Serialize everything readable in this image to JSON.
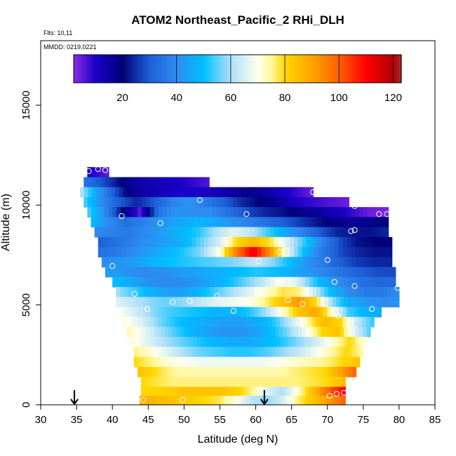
{
  "chart_data": {
    "type": "heatmap",
    "title": "ATOM2 Northeast_Pacific_2 RHi_DLH",
    "annotations": [
      "Flts: 10,11",
      "MMDD: 0219,0221"
    ],
    "xlabel": "Latitude (deg N)",
    "ylabel": "Altitude (m)",
    "xlim": [
      30,
      85
    ],
    "ylim": [
      0,
      17500
    ],
    "xticks": [
      30,
      35,
      40,
      45,
      50,
      55,
      60,
      65,
      70,
      75,
      80,
      85
    ],
    "yticks": [
      0,
      5000,
      10000,
      15000
    ],
    "colorbar": {
      "range": [
        2,
        123
      ],
      "ticks": [
        20,
        40,
        60,
        80,
        100,
        120
      ],
      "stops": [
        {
          "v": 2,
          "color": "#8a2be2"
        },
        {
          "v": 10,
          "color": "#1a00c8"
        },
        {
          "v": 20,
          "color": "#00007a"
        },
        {
          "v": 30,
          "color": "#1d5fd8"
        },
        {
          "v": 40,
          "color": "#2e8bf0"
        },
        {
          "v": 50,
          "color": "#00bfff"
        },
        {
          "v": 60,
          "color": "#b0e0f8"
        },
        {
          "v": 70,
          "color": "#fffff0"
        },
        {
          "v": 75,
          "color": "#fff8a0"
        },
        {
          "v": 80,
          "color": "#ffd700"
        },
        {
          "v": 90,
          "color": "#ffa500"
        },
        {
          "v": 100,
          "color": "#ff6000"
        },
        {
          "v": 110,
          "color": "#ff0000"
        },
        {
          "v": 120,
          "color": "#b00000"
        },
        {
          "v": 123,
          "color": "#a52a2a"
        }
      ]
    },
    "arrows_latitude": [
      34.7,
      61.2
    ],
    "rows": [
      {
        "y0": 11400,
        "y1": 11900,
        "x0": 36.5,
        "x1": 39.5,
        "v": [
          12,
          8,
          5
        ]
      },
      {
        "y0": 10900,
        "y1": 11400,
        "x0": 36,
        "x1": 53.5,
        "v": [
          35,
          30,
          25,
          18,
          14,
          12,
          12,
          10,
          8,
          6
        ]
      },
      {
        "y0": 10400,
        "y1": 10900,
        "x0": 35.5,
        "x1": 68,
        "v": [
          62,
          45,
          30,
          18,
          14,
          12,
          10,
          10,
          12,
          15,
          18,
          16,
          12,
          8,
          4
        ]
      },
      {
        "y0": 9900,
        "y1": 10400,
        "x0": 36,
        "x1": 73,
        "v": [
          55,
          40,
          30,
          24,
          30,
          38,
          42,
          36,
          30,
          24,
          20,
          16,
          10,
          8,
          6,
          4
        ]
      },
      {
        "y0": 9400,
        "y1": 9900,
        "x0": 36.5,
        "x1": 78.5,
        "v": [
          55,
          40,
          20,
          5,
          35,
          42,
          40,
          40,
          34,
          28,
          24,
          22,
          18,
          16,
          12,
          8,
          4,
          3
        ]
      },
      {
        "y0": 8900,
        "y1": 9400,
        "x0": 37,
        "x1": 78.5,
        "v": [
          50,
          40,
          34,
          38,
          42,
          45,
          48,
          46,
          42,
          38,
          34,
          30,
          26,
          22,
          18,
          16,
          18,
          20
        ]
      },
      {
        "y0": 8400,
        "y1": 8900,
        "x0": 37.5,
        "x1": 78.5,
        "v": [
          40,
          38,
          36,
          40,
          44,
          48,
          52,
          60,
          66,
          62,
          54,
          46,
          38,
          30,
          24,
          22,
          22,
          24
        ]
      },
      {
        "y0": 7900,
        "y1": 8400,
        "x0": 38,
        "x1": 79,
        "v": [
          30,
          34,
          38,
          42,
          44,
          48,
          56,
          64,
          80,
          86,
          78,
          64,
          52,
          38,
          28,
          22,
          20,
          20
        ]
      },
      {
        "y0": 7400,
        "y1": 7900,
        "x0": 38,
        "x1": 79,
        "v": [
          34,
          36,
          40,
          44,
          48,
          52,
          58,
          70,
          96,
          112,
          92,
          66,
          48,
          36,
          28,
          24,
          22,
          22
        ]
      },
      {
        "y0": 6900,
        "y1": 7400,
        "x0": 38.5,
        "x1": 79,
        "v": [
          40,
          42,
          44,
          48,
          50,
          52,
          54,
          56,
          58,
          62,
          58,
          50,
          42,
          36,
          30,
          26,
          24,
          24
        ]
      },
      {
        "y0": 6400,
        "y1": 6900,
        "x0": 39,
        "x1": 79.5,
        "v": [
          44,
          42,
          40,
          40,
          42,
          44,
          46,
          48,
          50,
          52,
          50,
          46,
          42,
          38,
          34,
          30,
          28,
          28
        ]
      },
      {
        "y0": 5900,
        "y1": 6400,
        "x0": 40,
        "x1": 79.5,
        "v": [
          50,
          46,
          42,
          40,
          40,
          42,
          46,
          50,
          56,
          62,
          70,
          66,
          54,
          44,
          38,
          34,
          32,
          32
        ]
      },
      {
        "y0": 5400,
        "y1": 5900,
        "x0": 40.5,
        "x1": 80,
        "v": [
          60,
          54,
          48,
          44,
          44,
          48,
          54,
          60,
          66,
          72,
          78,
          76,
          62,
          48,
          40,
          36,
          36,
          40
        ]
      },
      {
        "y0": 4900,
        "y1": 5400,
        "x0": 40.5,
        "x1": 80,
        "v": [
          66,
          62,
          58,
          56,
          58,
          62,
          66,
          68,
          70,
          76,
          84,
          92,
          80,
          58,
          46,
          42,
          40,
          42
        ]
      },
      {
        "y0": 4400,
        "y1": 4900,
        "x0": 41,
        "x1": 77.5,
        "v": [
          70,
          64,
          58,
          54,
          52,
          50,
          48,
          48,
          52,
          60,
          72,
          84,
          90,
          72,
          54,
          48,
          46
        ]
      },
      {
        "y0": 3900,
        "y1": 4400,
        "x0": 41.5,
        "x1": 76.5,
        "v": [
          72,
          66,
          58,
          52,
          48,
          46,
          44,
          44,
          46,
          52,
          62,
          74,
          86,
          80,
          62,
          52
        ]
      },
      {
        "y0": 3400,
        "y1": 3900,
        "x0": 42,
        "x1": 76,
        "v": [
          74,
          68,
          60,
          54,
          48,
          44,
          42,
          42,
          44,
          50,
          58,
          68,
          80,
          84,
          66,
          54
        ]
      },
      {
        "y0": 2900,
        "y1": 3400,
        "x0": 42.5,
        "x1": 75.5,
        "v": [
          72,
          66,
          60,
          56,
          52,
          48,
          46,
          46,
          48,
          52,
          58,
          64,
          72,
          80,
          70
        ]
      },
      {
        "y0": 2400,
        "y1": 2900,
        "x0": 43,
        "x1": 75,
        "v": [
          76,
          72,
          66,
          60,
          56,
          54,
          52,
          52,
          54,
          58,
          62,
          68,
          74,
          80,
          74
        ]
      },
      {
        "y0": 1900,
        "y1": 2400,
        "x0": 43,
        "x1": 74.5,
        "v": [
          80,
          76,
          72,
          70,
          68,
          68,
          68,
          68,
          68,
          70,
          72,
          74,
          76,
          80,
          84
        ]
      },
      {
        "y0": 1400,
        "y1": 1900,
        "x0": 43.5,
        "x1": 74,
        "v": [
          84,
          80,
          76,
          74,
          74,
          74,
          74,
          74,
          74,
          74,
          76,
          78,
          80,
          90,
          100
        ]
      },
      {
        "y0": 900,
        "y1": 1400,
        "x0": 44,
        "x1": 72.5,
        "v": [
          80,
          78,
          76,
          76,
          76,
          76,
          76,
          76,
          76,
          76,
          76,
          78,
          80,
          86
        ]
      },
      {
        "y0": 450,
        "y1": 900,
        "x0": 44,
        "x1": 72.5,
        "v": [
          80,
          80,
          82,
          84,
          84,
          84,
          82,
          76,
          66,
          60,
          72,
          86,
          100,
          112
        ]
      },
      {
        "y0": 0,
        "y1": 450,
        "x0": 43.8,
        "x1": 72.5,
        "v": [
          88,
          86,
          84,
          82,
          80,
          78,
          72,
          62,
          58,
          64,
          76,
          84,
          92,
          100
        ]
      }
    ],
    "points": [
      [
        36.7,
        11700
      ],
      [
        38,
        11800
      ],
      [
        39,
        11750
      ],
      [
        41.3,
        9450
      ],
      [
        46.7,
        9100
      ],
      [
        52.2,
        10250
      ],
      [
        58.7,
        9550
      ],
      [
        68,
        10650
      ],
      [
        73.8,
        9950
      ],
      [
        77.2,
        9550
      ],
      [
        78.3,
        9550
      ],
      [
        73.3,
        8700
      ],
      [
        73.8,
        8750
      ],
      [
        63.3,
        7650
      ],
      [
        60.4,
        7200
      ],
      [
        70,
        7250
      ],
      [
        40,
        6950
      ],
      [
        43.1,
        5550
      ],
      [
        44.9,
        4800
      ],
      [
        48.4,
        5150
      ],
      [
        50.8,
        5200
      ],
      [
        54.6,
        5450
      ],
      [
        56.9,
        4700
      ],
      [
        64.5,
        5250
      ],
      [
        66.5,
        5050
      ],
      [
        71,
        6150
      ],
      [
        73.8,
        5950
      ],
      [
        79.8,
        5850
      ],
      [
        76.2,
        4800
      ],
      [
        71.5,
        4450
      ],
      [
        73.2,
        4100
      ],
      [
        74.7,
        3150
      ],
      [
        44.3,
        250
      ],
      [
        49.8,
        250
      ],
      [
        55.9,
        250
      ],
      [
        70.3,
        450
      ],
      [
        71.3,
        550
      ],
      [
        72.3,
        600
      ]
    ]
  }
}
